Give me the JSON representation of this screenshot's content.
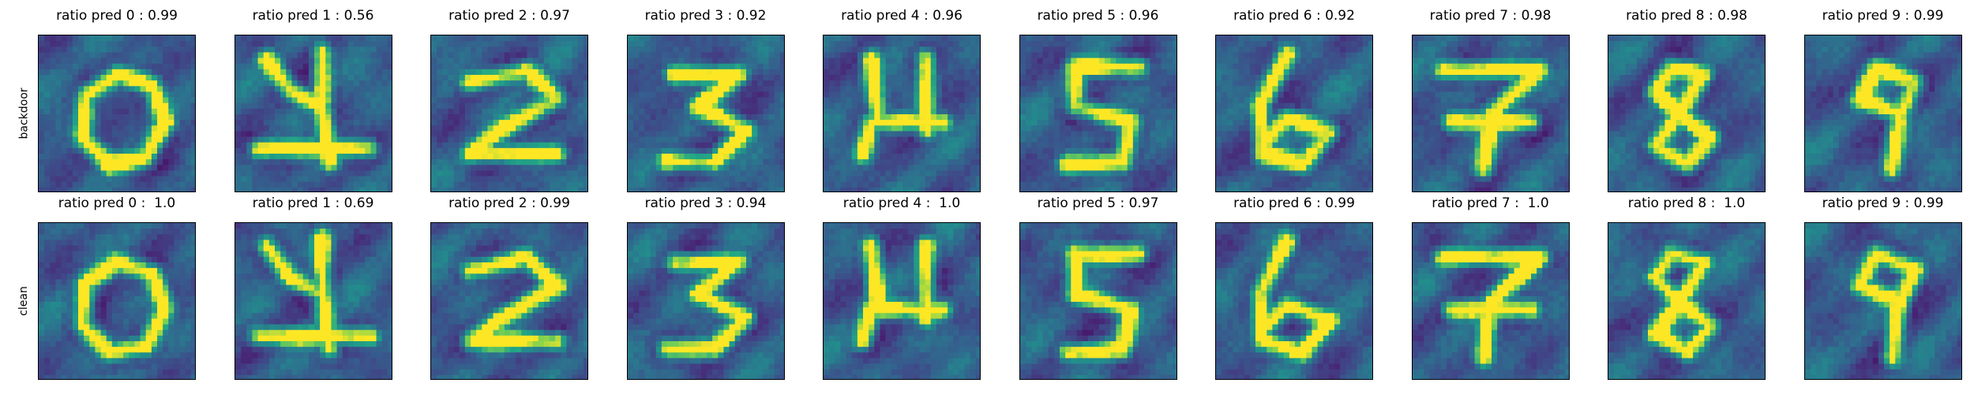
{
  "chart_data": {
    "type": "heatmap",
    "colormap": "viridis",
    "rows": [
      {
        "label": "backdoor",
        "panels": [
          {
            "digit": 0,
            "title": "ratio pred 0 : 0.99",
            "ratio": 0.99
          },
          {
            "digit": 1,
            "title": "ratio pred 1 : 0.56",
            "ratio": 0.56
          },
          {
            "digit": 2,
            "title": "ratio pred 2 : 0.97",
            "ratio": 0.97
          },
          {
            "digit": 3,
            "title": "ratio pred 3 : 0.92",
            "ratio": 0.92
          },
          {
            "digit": 4,
            "title": "ratio pred 4 : 0.96",
            "ratio": 0.96
          },
          {
            "digit": 5,
            "title": "ratio pred 5 : 0.96",
            "ratio": 0.96
          },
          {
            "digit": 6,
            "title": "ratio pred 6 : 0.92",
            "ratio": 0.92
          },
          {
            "digit": 7,
            "title": "ratio pred 7 : 0.98",
            "ratio": 0.98
          },
          {
            "digit": 8,
            "title": "ratio pred 8 : 0.98",
            "ratio": 0.98
          },
          {
            "digit": 9,
            "title": "ratio pred 9 : 0.99",
            "ratio": 0.99
          }
        ]
      },
      {
        "label": "clean",
        "panels": [
          {
            "digit": 0,
            "title": "ratio pred 0 :  1.0",
            "ratio": 1.0
          },
          {
            "digit": 1,
            "title": "ratio pred 1 : 0.69",
            "ratio": 0.69
          },
          {
            "digit": 2,
            "title": "ratio pred 2 : 0.99",
            "ratio": 0.99
          },
          {
            "digit": 3,
            "title": "ratio pred 3 : 0.94",
            "ratio": 0.94
          },
          {
            "digit": 4,
            "title": "ratio pred 4 :  1.0",
            "ratio": 1.0
          },
          {
            "digit": 5,
            "title": "ratio pred 5 : 0.97",
            "ratio": 0.97
          },
          {
            "digit": 6,
            "title": "ratio pred 6 : 0.99",
            "ratio": 0.99
          },
          {
            "digit": 7,
            "title": "ratio pred 7 :  1.0",
            "ratio": 1.0
          },
          {
            "digit": 8,
            "title": "ratio pred 8 :  1.0",
            "ratio": 1.0
          },
          {
            "digit": 9,
            "title": "ratio pred 9 : 0.99",
            "ratio": 0.99
          }
        ]
      }
    ]
  }
}
